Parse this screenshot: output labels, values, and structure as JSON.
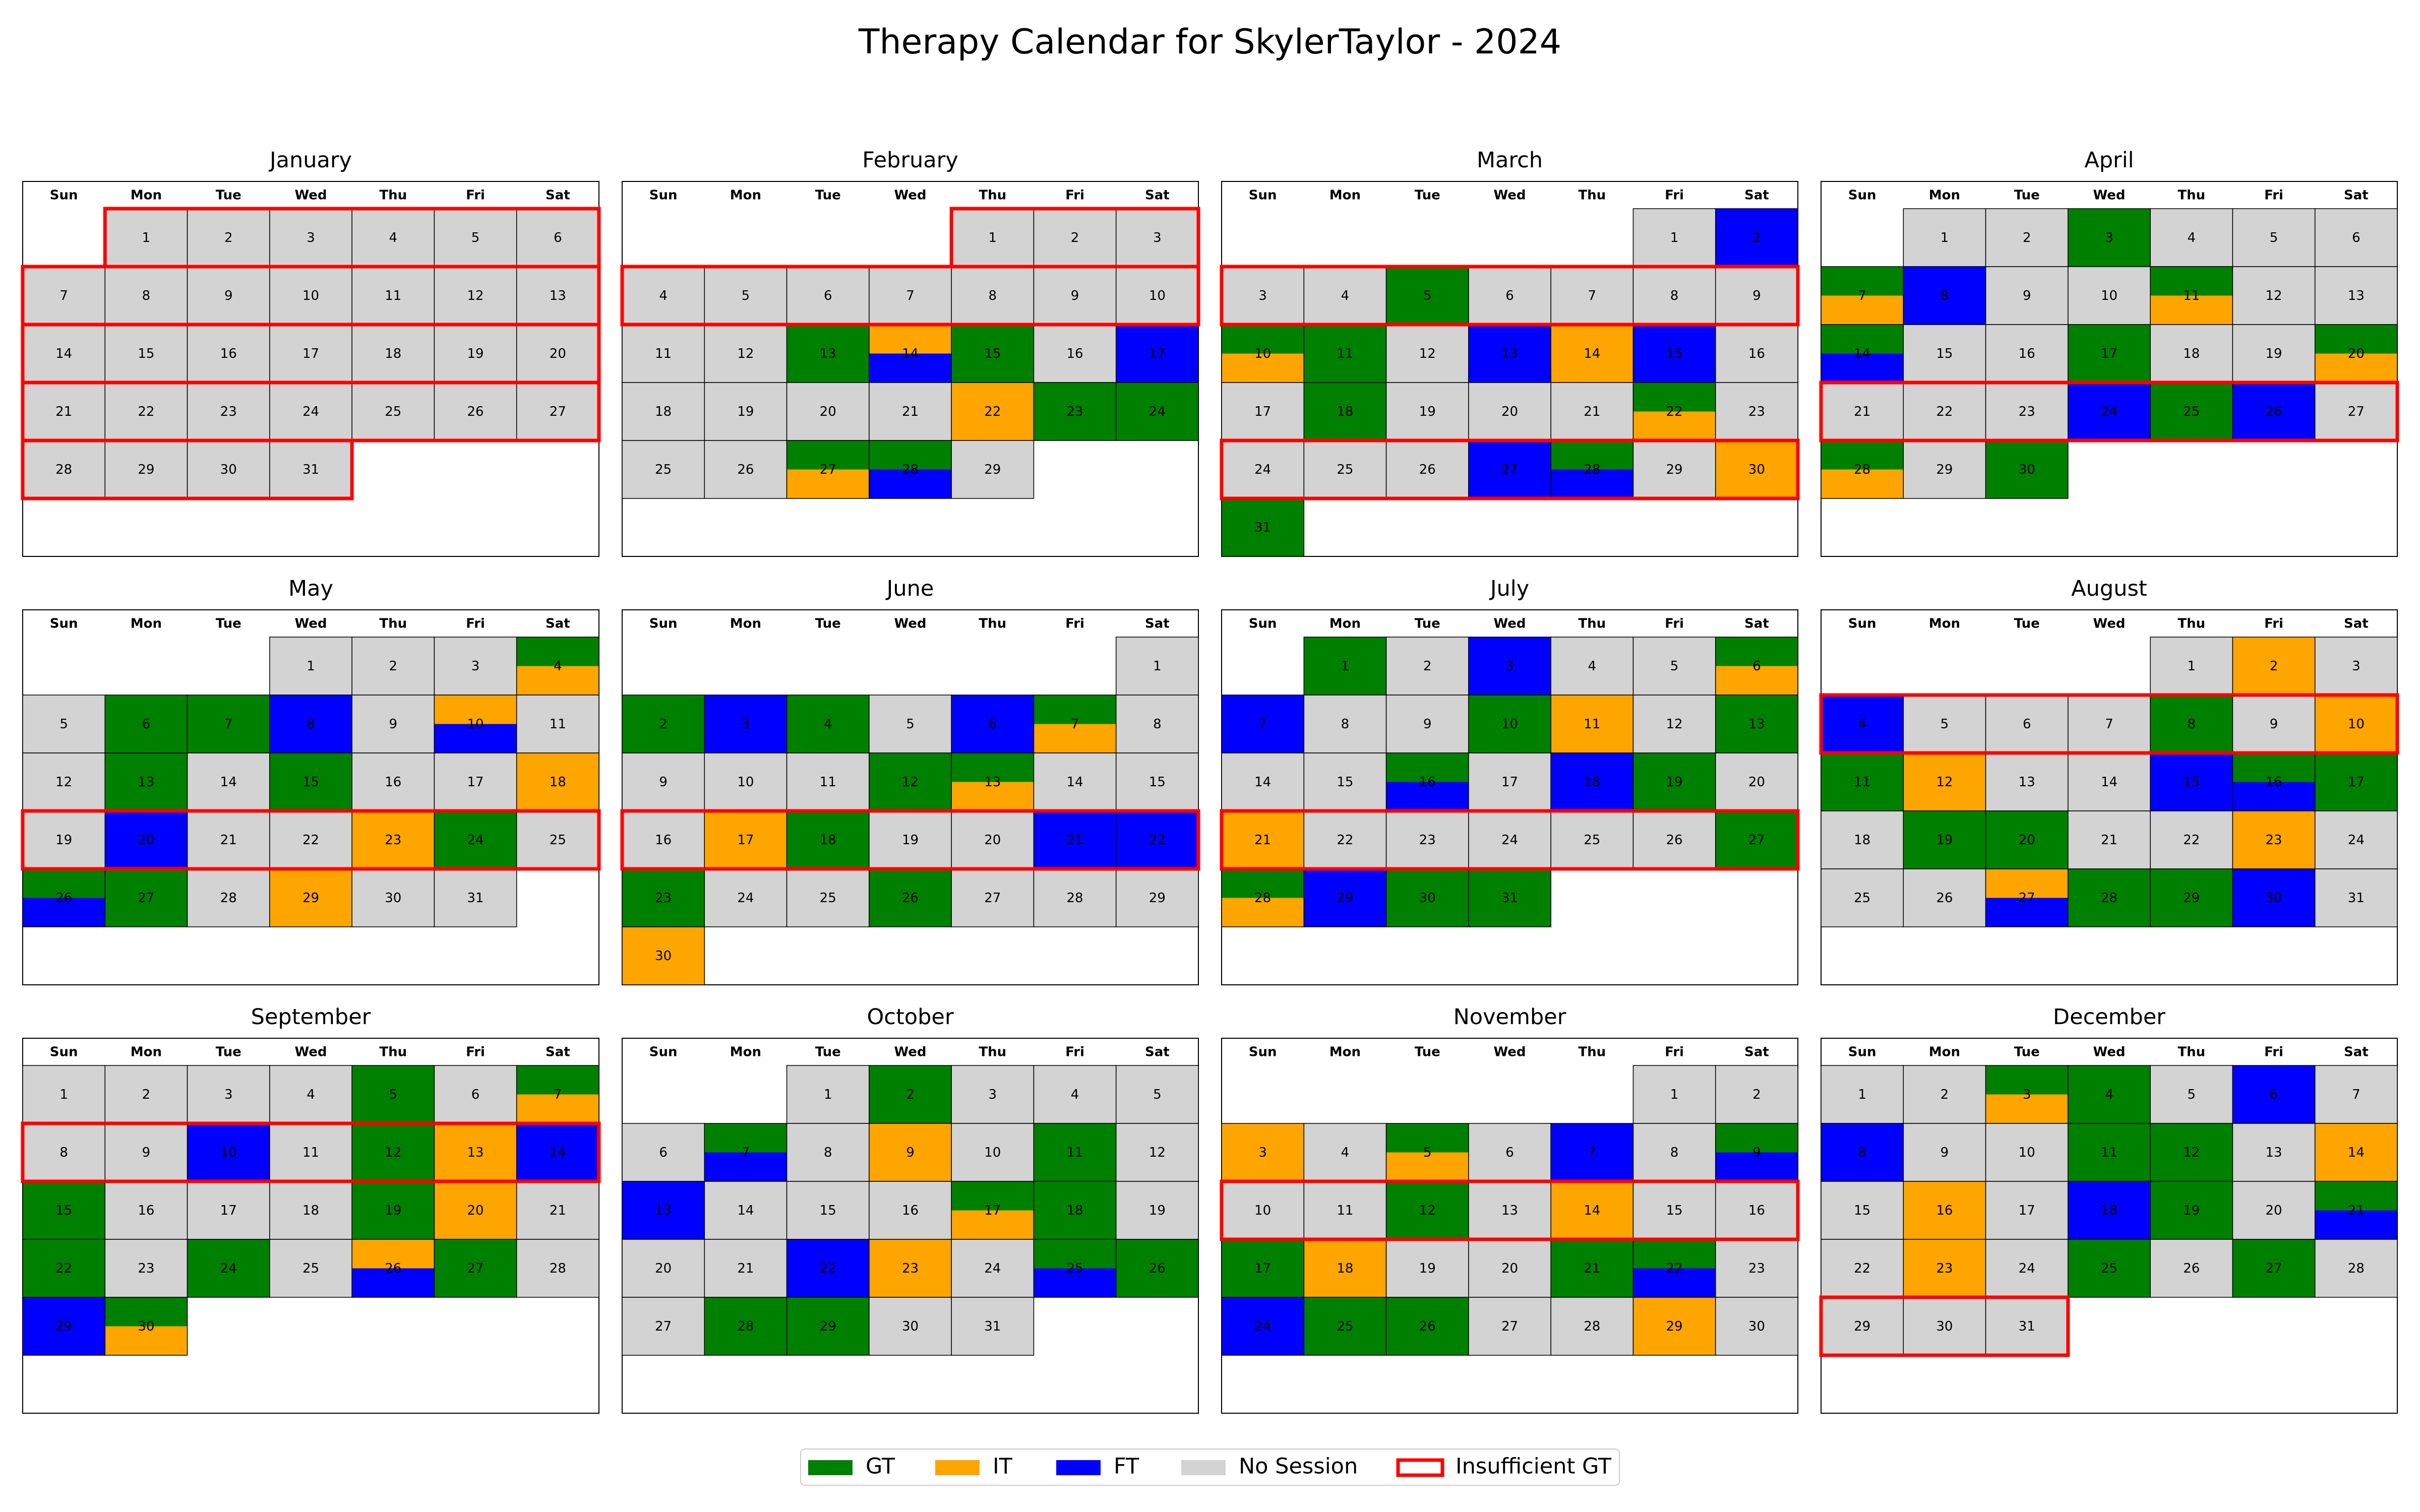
{
  "chart_data": {
    "type": "table",
    "title": "Therapy Calendar for SkylerTaylor - 2024",
    "year": 2024,
    "weekday_labels": [
      "Sun",
      "Mon",
      "Tue",
      "Wed",
      "Thu",
      "Fri",
      "Sat"
    ],
    "months": [
      {
        "name": "January",
        "first_weekday": 1,
        "days": 31,
        "insufficient_weeks": [
          0,
          1,
          2,
          3,
          4
        ],
        "sessions": {}
      },
      {
        "name": "February",
        "first_weekday": 4,
        "days": 29,
        "insufficient_weeks": [
          0,
          1
        ],
        "sessions": {
          "13": [
            "GT"
          ],
          "14": [
            "IT",
            "FT"
          ],
          "15": [
            "GT"
          ],
          "17": [
            "FT"
          ],
          "22": [
            "IT"
          ],
          "23": [
            "GT"
          ],
          "24": [
            "GT"
          ],
          "27": [
            "GT",
            "IT"
          ],
          "28": [
            "GT",
            "FT"
          ]
        }
      },
      {
        "name": "March",
        "first_weekday": 5,
        "days": 31,
        "insufficient_weeks": [
          1,
          4
        ],
        "sessions": {
          "2": [
            "FT"
          ],
          "5": [
            "GT"
          ],
          "10": [
            "GT",
            "IT"
          ],
          "11": [
            "GT"
          ],
          "13": [
            "FT"
          ],
          "14": [
            "IT"
          ],
          "15": [
            "FT"
          ],
          "18": [
            "GT"
          ],
          "22": [
            "GT",
            "IT"
          ],
          "27": [
            "FT"
          ],
          "28": [
            "GT",
            "FT"
          ],
          "30": [
            "IT"
          ],
          "31": [
            "GT"
          ]
        }
      },
      {
        "name": "April",
        "first_weekday": 1,
        "days": 30,
        "insufficient_weeks": [
          3
        ],
        "sessions": {
          "3": [
            "GT"
          ],
          "7": [
            "GT",
            "IT"
          ],
          "8": [
            "FT"
          ],
          "11": [
            "GT",
            "IT"
          ],
          "14": [
            "GT",
            "FT"
          ],
          "17": [
            "GT"
          ],
          "20": [
            "GT",
            "IT"
          ],
          "24": [
            "FT"
          ],
          "25": [
            "GT"
          ],
          "26": [
            "FT"
          ],
          "28": [
            "GT",
            "IT"
          ],
          "30": [
            "GT"
          ]
        }
      },
      {
        "name": "May",
        "first_weekday": 3,
        "days": 31,
        "insufficient_weeks": [
          3
        ],
        "sessions": {
          "4": [
            "GT",
            "IT"
          ],
          "6": [
            "GT"
          ],
          "7": [
            "GT"
          ],
          "8": [
            "FT"
          ],
          "10": [
            "IT",
            "FT"
          ],
          "13": [
            "GT"
          ],
          "15": [
            "GT"
          ],
          "18": [
            "IT"
          ],
          "20": [
            "FT"
          ],
          "23": [
            "IT"
          ],
          "24": [
            "GT"
          ],
          "26": [
            "GT",
            "FT"
          ],
          "27": [
            "GT"
          ],
          "29": [
            "IT"
          ]
        }
      },
      {
        "name": "June",
        "first_weekday": 6,
        "days": 30,
        "insufficient_weeks": [
          3
        ],
        "sessions": {
          "2": [
            "GT"
          ],
          "3": [
            "FT"
          ],
          "4": [
            "GT"
          ],
          "6": [
            "FT"
          ],
          "7": [
            "GT",
            "IT"
          ],
          "12": [
            "GT"
          ],
          "13": [
            "GT",
            "IT"
          ],
          "17": [
            "IT"
          ],
          "18": [
            "GT"
          ],
          "21": [
            "FT"
          ],
          "22": [
            "FT"
          ],
          "23": [
            "GT"
          ],
          "26": [
            "GT"
          ],
          "30": [
            "IT"
          ]
        }
      },
      {
        "name": "July",
        "first_weekday": 1,
        "days": 31,
        "insufficient_weeks": [
          3
        ],
        "sessions": {
          "1": [
            "GT"
          ],
          "3": [
            "FT"
          ],
          "6": [
            "GT",
            "IT"
          ],
          "7": [
            "FT"
          ],
          "10": [
            "GT"
          ],
          "11": [
            "IT"
          ],
          "13": [
            "GT"
          ],
          "16": [
            "GT",
            "FT"
          ],
          "18": [
            "FT"
          ],
          "19": [
            "GT"
          ],
          "21": [
            "IT"
          ],
          "27": [
            "GT"
          ],
          "28": [
            "GT",
            "IT"
          ],
          "29": [
            "FT"
          ],
          "30": [
            "GT"
          ],
          "31": [
            "GT"
          ]
        }
      },
      {
        "name": "August",
        "first_weekday": 4,
        "days": 31,
        "insufficient_weeks": [
          1
        ],
        "sessions": {
          "2": [
            "IT"
          ],
          "4": [
            "FT"
          ],
          "8": [
            "GT"
          ],
          "10": [
            "IT"
          ],
          "11": [
            "GT"
          ],
          "12": [
            "IT"
          ],
          "15": [
            "FT"
          ],
          "16": [
            "GT",
            "FT"
          ],
          "17": [
            "GT"
          ],
          "19": [
            "GT"
          ],
          "20": [
            "GT"
          ],
          "23": [
            "IT"
          ],
          "27": [
            "IT",
            "FT"
          ],
          "28": [
            "GT"
          ],
          "29": [
            "GT"
          ],
          "30": [
            "FT"
          ]
        }
      },
      {
        "name": "September",
        "first_weekday": 0,
        "days": 30,
        "insufficient_weeks": [
          1
        ],
        "sessions": {
          "5": [
            "GT"
          ],
          "7": [
            "GT",
            "IT"
          ],
          "10": [
            "FT"
          ],
          "12": [
            "GT"
          ],
          "13": [
            "IT"
          ],
          "14": [
            "FT"
          ],
          "15": [
            "GT"
          ],
          "19": [
            "GT"
          ],
          "20": [
            "IT"
          ],
          "22": [
            "GT"
          ],
          "24": [
            "GT"
          ],
          "26": [
            "IT",
            "FT"
          ],
          "27": [
            "GT"
          ],
          "29": [
            "FT"
          ],
          "30": [
            "GT",
            "IT"
          ]
        }
      },
      {
        "name": "October",
        "first_weekday": 2,
        "days": 31,
        "insufficient_weeks": [],
        "sessions": {
          "2": [
            "GT"
          ],
          "7": [
            "GT",
            "FT"
          ],
          "9": [
            "IT"
          ],
          "11": [
            "GT"
          ],
          "13": [
            "FT"
          ],
          "17": [
            "GT",
            "IT"
          ],
          "18": [
            "GT"
          ],
          "22": [
            "FT"
          ],
          "23": [
            "IT"
          ],
          "25": [
            "GT",
            "FT"
          ],
          "26": [
            "GT"
          ],
          "28": [
            "GT"
          ],
          "29": [
            "GT"
          ]
        }
      },
      {
        "name": "November",
        "first_weekday": 5,
        "days": 30,
        "insufficient_weeks": [
          2
        ],
        "sessions": {
          "3": [
            "IT"
          ],
          "5": [
            "GT",
            "IT"
          ],
          "7": [
            "FT"
          ],
          "9": [
            "GT",
            "FT"
          ],
          "12": [
            "GT"
          ],
          "14": [
            "IT"
          ],
          "17": [
            "GT"
          ],
          "18": [
            "IT"
          ],
          "21": [
            "GT"
          ],
          "22": [
            "GT",
            "FT"
          ],
          "24": [
            "FT"
          ],
          "25": [
            "GT"
          ],
          "26": [
            "GT"
          ],
          "29": [
            "IT"
          ]
        }
      },
      {
        "name": "December",
        "first_weekday": 0,
        "days": 31,
        "insufficient_weeks": [
          4
        ],
        "sessions": {
          "3": [
            "GT",
            "IT"
          ],
          "4": [
            "GT"
          ],
          "6": [
            "FT"
          ],
          "8": [
            "FT"
          ],
          "11": [
            "GT"
          ],
          "12": [
            "GT"
          ],
          "14": [
            "IT"
          ],
          "16": [
            "IT"
          ],
          "18": [
            "FT"
          ],
          "19": [
            "GT"
          ],
          "21": [
            "GT",
            "FT"
          ],
          "23": [
            "IT"
          ],
          "25": [
            "GT"
          ],
          "27": [
            "GT"
          ]
        }
      }
    ],
    "legend": [
      {
        "key": "GT",
        "label": "GT",
        "color": "#008000"
      },
      {
        "key": "IT",
        "label": "IT",
        "color": "#FFA500"
      },
      {
        "key": "FT",
        "label": "FT",
        "color": "#0000FF"
      },
      {
        "key": "none",
        "label": "No Session",
        "color": "#D3D3D3"
      },
      {
        "key": "insufficient",
        "label": "Insufficient GT",
        "color": "#FF0000",
        "outline": true
      }
    ]
  }
}
